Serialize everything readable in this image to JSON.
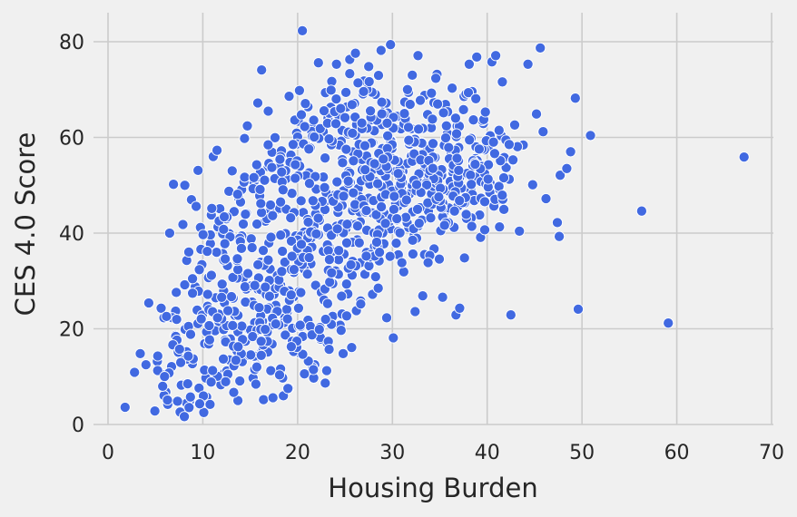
{
  "chart_data": {
    "type": "scatter",
    "title": "",
    "xlabel": "Housing Burden",
    "ylabel": "CES 4.0 Score",
    "xlim": [
      0,
      70
    ],
    "ylim": [
      0,
      85
    ],
    "x_ticks": [
      0,
      10,
      20,
      30,
      40,
      50,
      60,
      70
    ],
    "y_ticks": [
      0,
      20,
      40,
      60,
      80
    ],
    "grid": true,
    "legend": "none",
    "color": "#4169e1",
    "background": "#f0f0f0",
    "series": [
      {
        "points": [
          [
            1.8,
            3.6
          ],
          [
            2.8,
            10.9
          ],
          [
            3.4,
            14.8
          ],
          [
            4.0,
            12.5
          ],
          [
            4.3,
            25.4
          ],
          [
            5.2,
            13.2
          ],
          [
            5.6,
            24.3
          ],
          [
            5.9,
            22.3
          ],
          [
            6.0,
            10.4
          ],
          [
            6.3,
            4.2
          ],
          [
            6.5,
            40.0
          ],
          [
            6.9,
            50.2
          ],
          [
            7.2,
            27.6
          ],
          [
            7.6,
            2.6
          ],
          [
            7.9,
            41.8
          ],
          [
            8.1,
            50.0
          ],
          [
            8.3,
            34.3
          ],
          [
            8.8,
            47.0
          ],
          [
            9.3,
            45.6
          ],
          [
            9.4,
            23.9
          ],
          [
            9.5,
            53.1
          ],
          [
            9.8,
            36.6
          ],
          [
            10.1,
            2.5
          ],
          [
            10.6,
            30.7
          ],
          [
            10.9,
            43.8
          ],
          [
            11.1,
            56.0
          ],
          [
            11.5,
            57.3
          ],
          [
            11.8,
            45.1
          ],
          [
            12.3,
            10.8
          ],
          [
            12.5,
            43.0
          ],
          [
            13.1,
            53.0
          ],
          [
            13.3,
            44.5
          ],
          [
            13.7,
            5.0
          ],
          [
            14.1,
            49.1
          ],
          [
            14.4,
            59.8
          ],
          [
            14.7,
            62.4
          ],
          [
            15.3,
            9.7
          ],
          [
            15.8,
            67.2
          ],
          [
            16.2,
            74.1
          ],
          [
            16.4,
            5.2
          ],
          [
            16.9,
            65.5
          ],
          [
            17.3,
            56.9
          ],
          [
            17.4,
            5.6
          ],
          [
            17.7,
            44.8
          ],
          [
            18.5,
            6.0
          ],
          [
            19.1,
            68.6
          ],
          [
            19.3,
            56.3
          ],
          [
            19.9,
            60.9
          ],
          [
            20.2,
            69.8
          ],
          [
            20.5,
            82.3
          ],
          [
            21.1,
            66.4
          ],
          [
            21.6,
            62.0
          ],
          [
            21.7,
            9.7
          ],
          [
            22.2,
            75.6
          ],
          [
            22.6,
            51.7
          ],
          [
            23.2,
            64.0
          ],
          [
            23.6,
            71.7
          ],
          [
            24.1,
            75.3
          ],
          [
            24.6,
            59.2
          ],
          [
            24.8,
            14.8
          ],
          [
            25.5,
            76.3
          ],
          [
            25.7,
            16.1
          ],
          [
            26.1,
            77.6
          ],
          [
            26.2,
            23.8
          ],
          [
            26.9,
            69.1
          ],
          [
            27.5,
            74.8
          ],
          [
            27.9,
            27.2
          ],
          [
            28.2,
            69.0
          ],
          [
            28.8,
            78.2
          ],
          [
            29.2,
            66.7
          ],
          [
            29.4,
            22.3
          ],
          [
            29.8,
            79.4
          ],
          [
            30.1,
            18.1
          ],
          [
            30.5,
            64.4
          ],
          [
            31.1,
            52.9
          ],
          [
            31.2,
            31.9
          ],
          [
            31.7,
            69.4
          ],
          [
            32.1,
            73.0
          ],
          [
            32.4,
            23.6
          ],
          [
            32.7,
            77.1
          ],
          [
            33.2,
            26.9
          ],
          [
            33.6,
            54.4
          ],
          [
            34.1,
            62.0
          ],
          [
            34.7,
            73.2
          ],
          [
            35.1,
            40.5
          ],
          [
            35.3,
            26.6
          ],
          [
            35.8,
            60.8
          ],
          [
            36.3,
            70.3
          ],
          [
            36.7,
            22.9
          ],
          [
            37.1,
            24.3
          ],
          [
            37.6,
            34.8
          ],
          [
            38.1,
            75.3
          ],
          [
            38.4,
            69.6
          ],
          [
            38.9,
            76.8
          ],
          [
            39.3,
            39.1
          ],
          [
            39.6,
            62.9
          ],
          [
            40.1,
            58.0
          ],
          [
            40.5,
            75.8
          ],
          [
            40.9,
            77.1
          ],
          [
            41.3,
            41.3
          ],
          [
            41.6,
            71.6
          ],
          [
            42.0,
            53.7
          ],
          [
            42.5,
            22.9
          ],
          [
            42.9,
            62.6
          ],
          [
            43.4,
            40.4
          ],
          [
            43.8,
            58.4
          ],
          [
            44.3,
            75.3
          ],
          [
            44.8,
            50.1
          ],
          [
            45.2,
            64.9
          ],
          [
            45.6,
            78.7
          ],
          [
            45.9,
            61.2
          ],
          [
            46.2,
            47.2
          ],
          [
            47.4,
            42.2
          ],
          [
            47.6,
            39.3
          ],
          [
            47.7,
            52.1
          ],
          [
            48.4,
            53.5
          ],
          [
            48.8,
            57.0
          ],
          [
            49.3,
            68.2
          ],
          [
            49.6,
            24.1
          ],
          [
            50.9,
            60.4
          ],
          [
            56.3,
            44.6
          ],
          [
            59.1,
            21.2
          ],
          [
            67.1,
            55.9
          ],
          [
            11.7,
            21.5
          ],
          [
            13.2,
            26.4
          ],
          [
            14.9,
            19.8
          ],
          [
            15.8,
            28.3
          ],
          [
            16.3,
            21.6
          ],
          [
            17.1,
            32.5
          ],
          [
            17.7,
            24.9
          ],
          [
            18.4,
            36.2
          ],
          [
            19.0,
            27.4
          ],
          [
            19.6,
            31.8
          ],
          [
            20.1,
            24.3
          ],
          [
            20.7,
            40.2
          ],
          [
            21.4,
            33.6
          ],
          [
            21.9,
            29.1
          ],
          [
            22.6,
            44.8
          ],
          [
            23.3,
            37.2
          ],
          [
            23.9,
            47.9
          ],
          [
            24.5,
            41.4
          ],
          [
            25.2,
            51.2
          ],
          [
            25.8,
            44.7
          ],
          [
            26.3,
            38.6
          ],
          [
            26.9,
            54.9
          ],
          [
            27.5,
            47.3
          ],
          [
            28.2,
            50.8
          ],
          [
            28.7,
            43.5
          ],
          [
            29.4,
            56.4
          ],
          [
            30.0,
            49.2
          ],
          [
            30.7,
            53.7
          ],
          [
            31.3,
            46.5
          ],
          [
            31.8,
            58.6
          ],
          [
            32.6,
            51.3
          ],
          [
            33.2,
            61.9
          ],
          [
            33.8,
            44.6
          ],
          [
            34.5,
            55.8
          ],
          [
            35.0,
            48.9
          ],
          [
            35.7,
            62.4
          ],
          [
            36.4,
            52.6
          ],
          [
            37.0,
            57.9
          ],
          [
            37.6,
            46.3
          ],
          [
            38.3,
            59.8
          ],
          [
            38.8,
            51.7
          ],
          [
            39.5,
            63.5
          ],
          [
            40.1,
            54.2
          ],
          [
            40.9,
            49.6
          ],
          [
            41.5,
            60.3
          ],
          [
            12.6,
            33.2
          ],
          [
            13.6,
            15.4
          ],
          [
            14.3,
            30.7
          ],
          [
            15.1,
            38.8
          ],
          [
            15.7,
            12.3
          ],
          [
            16.6,
            42.5
          ],
          [
            17.3,
            16.8
          ],
          [
            18.1,
            45.2
          ],
          [
            18.7,
            18.7
          ],
          [
            19.4,
            48.3
          ],
          [
            20.3,
            14.8
          ],
          [
            21.2,
            52.6
          ],
          [
            22.1,
            19.9
          ],
          [
            22.9,
            55.7
          ],
          [
            23.7,
            22.6
          ],
          [
            24.4,
            58.4
          ],
          [
            25.3,
            27.3
          ],
          [
            26.1,
            60.5
          ],
          [
            27.1,
            31.4
          ],
          [
            27.8,
            63.7
          ],
          [
            28.6,
            34.2
          ],
          [
            29.5,
            65.1
          ],
          [
            30.4,
            37.9
          ],
          [
            31.3,
            67.4
          ],
          [
            32.3,
            39.6
          ],
          [
            33.4,
            68.8
          ],
          [
            34.4,
            36.7
          ],
          [
            35.6,
            66.9
          ],
          [
            36.5,
            41.2
          ],
          [
            37.5,
            65.8
          ],
          [
            7.4,
            15.2
          ],
          [
            7.8,
            8.4
          ],
          [
            8.3,
            20.4
          ],
          [
            8.9,
            12.7
          ],
          [
            9.2,
            28.8
          ],
          [
            9.6,
            7.6
          ],
          [
            10.2,
            16.9
          ],
          [
            10.5,
            24.7
          ],
          [
            10.9,
            11.3
          ],
          [
            11.3,
            19.6
          ],
          [
            11.9,
            8.3
          ],
          [
            12.2,
            27.9
          ],
          [
            12.8,
            13.5
          ],
          [
            13.4,
            22.8
          ],
          [
            13.9,
            9.1
          ],
          [
            14.5,
            17.4
          ],
          [
            15.2,
            25.6
          ],
          [
            15.6,
            14.2
          ],
          [
            16.1,
            33.9
          ],
          [
            16.8,
            19.3
          ],
          [
            17.5,
            27.2
          ],
          [
            18.2,
            11.6
          ],
          [
            18.9,
            23.5
          ],
          [
            19.7,
            16.4
          ],
          [
            20.4,
            35.3
          ],
          [
            21.1,
            21.8
          ],
          [
            21.8,
            12.5
          ],
          [
            22.5,
            27.6
          ],
          [
            23.1,
            17.1
          ],
          [
            24.0,
            32.1
          ],
          [
            6.1,
            6.8
          ],
          [
            6.7,
            12.1
          ],
          [
            7.1,
            18.6
          ],
          [
            8.6,
            4.9
          ],
          [
            9.9,
            33.4
          ],
          [
            10.8,
            37.8
          ],
          [
            11.6,
            41.3
          ],
          [
            12.1,
            35.7
          ],
          [
            13.0,
            39.2
          ],
          [
            13.8,
            47.3
          ],
          [
            14.6,
            44.1
          ],
          [
            15.4,
            50.6
          ],
          [
            16.0,
            47.8
          ],
          [
            16.9,
            53.9
          ],
          [
            17.6,
            51.4
          ],
          [
            18.3,
            57.2
          ],
          [
            19.2,
            54.8
          ],
          [
            20.0,
            60.1
          ],
          [
            20.9,
            58.3
          ],
          [
            21.7,
            63.6
          ],
          [
            22.7,
            61.2
          ],
          [
            23.5,
            66.3
          ],
          [
            24.3,
            64.7
          ],
          [
            25.1,
            69.4
          ],
          [
            26.0,
            67.1
          ],
          [
            27.0,
            71.8
          ],
          [
            27.9,
            58.9
          ],
          [
            28.9,
            62.7
          ],
          [
            29.9,
            59.3
          ],
          [
            30.9,
            61.8
          ],
          [
            32.0,
            56.1
          ],
          [
            33.1,
            58.9
          ],
          [
            34.0,
            50.4
          ],
          [
            35.2,
            52.1
          ],
          [
            36.2,
            56.7
          ],
          [
            37.3,
            49.4
          ],
          [
            38.5,
            54.1
          ],
          [
            39.7,
            57.4
          ],
          [
            40.6,
            46.1
          ],
          [
            41.8,
            55.8
          ],
          [
            24.9,
            35.6
          ],
          [
            25.6,
            41.9
          ],
          [
            26.6,
            33.8
          ],
          [
            27.3,
            40.6
          ],
          [
            28.4,
            37.4
          ],
          [
            29.1,
            44.2
          ],
          [
            29.8,
            40.9
          ],
          [
            30.6,
            47.8
          ],
          [
            31.5,
            42.6
          ],
          [
            32.1,
            49.9
          ],
          [
            32.9,
            45.3
          ],
          [
            33.7,
            52.1
          ],
          [
            34.6,
            47.4
          ],
          [
            35.4,
            44.1
          ],
          [
            36.1,
            50.8
          ],
          [
            36.9,
            45.6
          ],
          [
            37.8,
            52.3
          ],
          [
            38.7,
            47.1
          ],
          [
            39.2,
            43.8
          ],
          [
            40.3,
            50.5
          ],
          [
            19.8,
            39.4
          ],
          [
            20.6,
            44.3
          ],
          [
            21.5,
            37.1
          ],
          [
            22.3,
            42.7
          ],
          [
            23.0,
            48.5
          ],
          [
            23.8,
            39.9
          ],
          [
            24.7,
            45.8
          ],
          [
            25.4,
            52.9
          ],
          [
            26.4,
            49.3
          ],
          [
            27.2,
            55.6
          ],
          [
            28.0,
            46.8
          ],
          [
            28.8,
            53.2
          ],
          [
            29.6,
            50.1
          ],
          [
            30.3,
            55.4
          ],
          [
            31.0,
            51.6
          ]
        ]
      }
    ]
  }
}
